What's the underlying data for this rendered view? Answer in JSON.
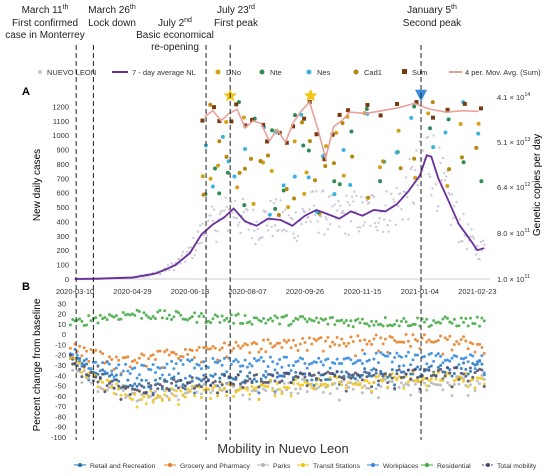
{
  "events": [
    {
      "key": "e1",
      "line1": "March 11",
      "sup": "th",
      "line2": "First confirmed",
      "line3": "case in Monterrey"
    },
    {
      "key": "e2",
      "line1": "March 26",
      "sup": "th",
      "line2": "Lock down",
      "line3": ""
    },
    {
      "key": "e3",
      "line1": "July 2",
      "sup": "nd",
      "line2": "Basic economical",
      "line3": "re-opening"
    },
    {
      "key": "e4",
      "line1": "July 23",
      "sup": "rd",
      "line2": "First peak",
      "line3": ""
    },
    {
      "key": "e5",
      "line1": "January  5",
      "sup": "th",
      "line2": "Second peak",
      "line3": ""
    }
  ],
  "colors": {
    "nl_points": "#c9c3d6",
    "avg7": "#6a2f9a",
    "dno": "#d4a017",
    "nte": "#2e8b57",
    "nes": "#3bb3e0",
    "cad1": "#b8860b",
    "sum": "#7a3b0f",
    "movavg": "#e8a19a",
    "retail": "#1f6fb4",
    "grocery": "#e67e22",
    "parks": "#b5b5b5",
    "transit": "#f1c40f",
    "workplaces": "#2e86de",
    "residential": "#3ea93e",
    "total": "#4a4a6a",
    "star": "#f1c40f",
    "triangle": "#3b8ede"
  },
  "chart_data": [
    {
      "panel": "A",
      "type": "line",
      "ylabel": "New daily cases",
      "y2label": "Genetic copies per day",
      "ylim": [
        0,
        1300
      ],
      "yticks": [
        "0",
        "100",
        "200",
        "300",
        "400",
        "500",
        "600",
        "700",
        "800",
        "900",
        "1000",
        "1100",
        "1200"
      ],
      "y2ticks": [
        "1.0 × 10",
        "8.0 × 10",
        "6.4 × 10",
        "5.1 × 10",
        "4.1 × 10"
      ],
      "y2ticks_exp": [
        "11",
        "11",
        "12",
        "13",
        "14"
      ],
      "xticks": [
        "2020-03-10",
        "2020-04-29",
        "2020-06-18",
        "2020-08-07",
        "2020-09-26",
        "2020-11-15",
        "2021-01-04",
        "2021-02-23"
      ],
      "legend": [
        "NUEVO LEON",
        "7 - day average NL",
        "DNo",
        "Nte",
        "Nes",
        "Cad1",
        "Sum",
        "4 per. Mov. Avg. (Sum)"
      ],
      "series": [
        {
          "name": "7 - day average NL",
          "x": [
            "2020-03-10",
            "2020-03-30",
            "2020-04-29",
            "2020-05-20",
            "2020-06-05",
            "2020-06-18",
            "2020-06-28",
            "2020-07-08",
            "2020-07-18",
            "2020-07-26",
            "2020-08-05",
            "2020-08-15",
            "2020-08-25",
            "2020-09-05",
            "2020-09-15",
            "2020-09-26",
            "2020-10-06",
            "2020-10-16",
            "2020-10-26",
            "2020-11-05",
            "2020-11-15",
            "2020-11-25",
            "2020-12-05",
            "2020-12-15",
            "2020-12-25",
            "2021-01-04",
            "2021-01-10",
            "2021-01-14",
            "2021-01-20",
            "2021-01-28",
            "2021-02-07",
            "2021-02-17",
            "2021-02-23",
            "2021-03-01"
          ],
          "values": [
            0,
            2,
            10,
            40,
            95,
            180,
            310,
            380,
            430,
            490,
            400,
            370,
            420,
            410,
            370,
            440,
            480,
            450,
            420,
            470,
            440,
            480,
            470,
            520,
            610,
            720,
            860,
            850,
            700,
            560,
            380,
            270,
            200,
            215
          ]
        },
        {
          "name": "4 per. Mov. Avg. (Sum)",
          "x": [
            "2020-07-01",
            "2020-07-08",
            "2020-07-15",
            "2020-07-22",
            "2020-07-29",
            "2020-08-05",
            "2020-08-12",
            "2020-08-19",
            "2020-08-26",
            "2020-09-02",
            "2020-09-09",
            "2020-09-16",
            "2020-09-23",
            "2020-09-30",
            "2020-10-07",
            "2020-10-14",
            "2020-10-21",
            "2020-10-28",
            "2020-11-04",
            "2020-11-18",
            "2020-12-02",
            "2020-12-16",
            "2020-12-30",
            "2021-01-13",
            "2021-01-27",
            "2021-02-10",
            "2021-02-24"
          ],
          "values": [
            1130,
            1170,
            1100,
            1150,
            1180,
            1050,
            1100,
            1080,
            960,
            1040,
            950,
            1090,
            1170,
            1230,
            1050,
            840,
            1060,
            1100,
            1160,
            1150,
            1170,
            1190,
            1220,
            1180,
            1160,
            1170,
            1165
          ]
        }
      ],
      "markers": [
        {
          "name": "star",
          "x": "2020-07-23",
          "y": 1260
        },
        {
          "name": "star",
          "x": "2020-10-01",
          "y": 1260
        },
        {
          "name": "triangle",
          "x": "2021-01-05",
          "y": 1260
        }
      ]
    },
    {
      "panel": "B",
      "type": "scatter",
      "title": "Mobility in Nuevo Leon",
      "ylabel": "Percent change from baseline",
      "ylim": [
        -100,
        40
      ],
      "yticks": [
        "-100",
        "-90",
        "-80",
        "-70",
        "-60",
        "-50",
        "-40",
        "-30",
        "-20",
        "-10",
        "0",
        "10",
        "20",
        "30"
      ],
      "legend": [
        "Retail and Recreation",
        "Grocery and Pharmacy",
        "Parks",
        "Transit Stations",
        "Workplaces",
        "Residential",
        "Total mobility"
      ],
      "series": [
        {
          "name": "Retail and Recreation",
          "level": [
            -5,
            -35,
            -50,
            -45,
            -40,
            -42,
            -40,
            -38,
            -36,
            -35,
            -30
          ]
        },
        {
          "name": "Grocery and Pharmacy",
          "level": [
            -2,
            -20,
            -25,
            -18,
            -12,
            -10,
            -8,
            -6,
            -5,
            -4,
            -10
          ]
        },
        {
          "name": "Parks",
          "level": [
            -5,
            -45,
            -60,
            -55,
            -52,
            -50,
            -48,
            -50,
            -48,
            -46,
            -45
          ]
        },
        {
          "name": "Transit Stations",
          "level": [
            -5,
            -40,
            -60,
            -55,
            -52,
            -50,
            -48,
            -45,
            -42,
            -40,
            -45
          ]
        },
        {
          "name": "Workplaces",
          "level": [
            0,
            -30,
            -35,
            -30,
            -28,
            -27,
            -25,
            -24,
            -22,
            -22,
            -25
          ]
        },
        {
          "name": "Residential",
          "level": [
            2,
            15,
            20,
            17,
            15,
            14,
            13,
            12,
            12,
            12,
            12
          ]
        },
        {
          "name": "Total mobility",
          "level": [
            -3,
            -40,
            -55,
            -48,
            -45,
            -43,
            -42,
            -40,
            -38,
            -37,
            -38
          ]
        }
      ]
    }
  ]
}
